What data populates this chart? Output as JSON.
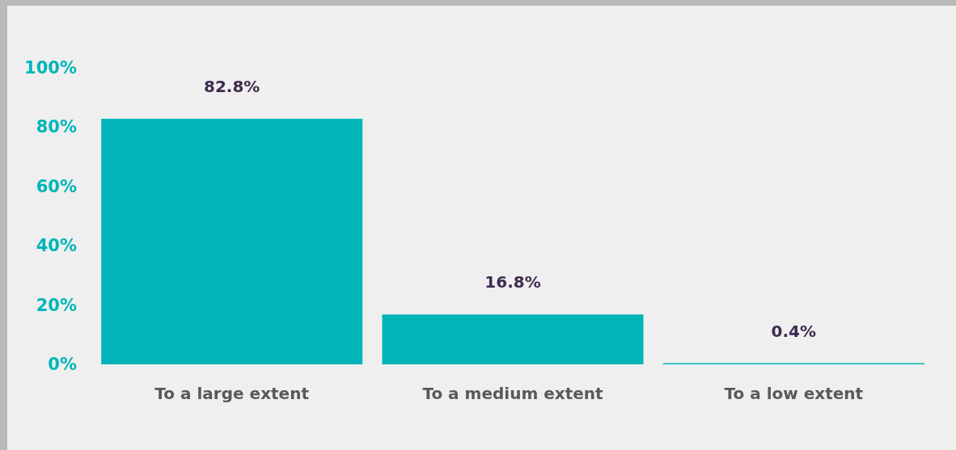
{
  "chart_data": {
    "type": "bar",
    "categories": [
      "To a large extent",
      "To a medium extent",
      "To a low extent"
    ],
    "values": [
      82.8,
      16.8,
      0.4
    ],
    "color": "#00b5b8",
    "value_labels": [
      "82.8%",
      "16.8%",
      "0.4%"
    ],
    "ylim": [
      0,
      100
    ],
    "yticks": [
      {
        "value": 0,
        "label": "0%"
      },
      {
        "value": 20,
        "label": "20%"
      },
      {
        "value": 40,
        "label": "40%"
      },
      {
        "value": 60,
        "label": "60%"
      },
      {
        "value": 80,
        "label": "80%"
      },
      {
        "value": 100,
        "label": "100%"
      }
    ],
    "grid": false
  }
}
